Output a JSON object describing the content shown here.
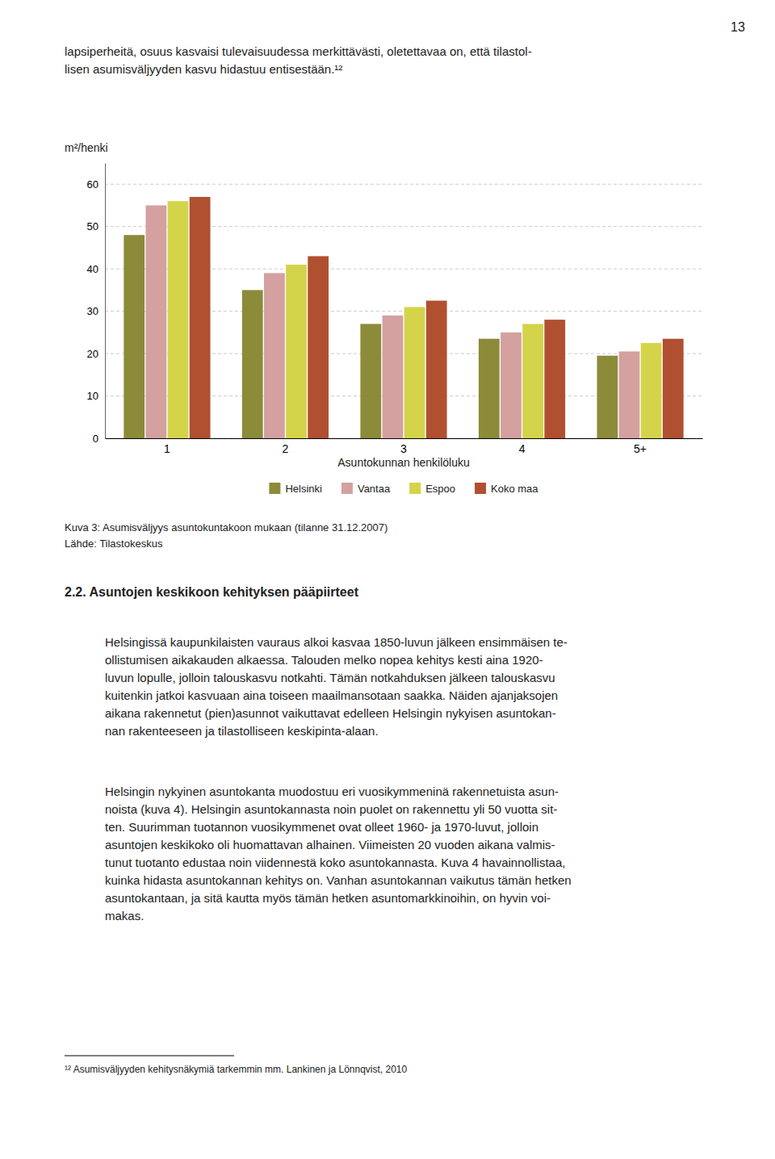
{
  "page_number": "13",
  "intro": [
    "lapsiperheitä, osuus kasvaisi tulevaisuudessa merkittävästi, oletettavaa on, että tilastol-",
    "lisen asumisväljyyden kasvu hidastuu entisestään.¹²"
  ],
  "chart_data": {
    "type": "bar",
    "ylabel": "m²/henki",
    "xlabel": "Asuntokunnan henkilöluku",
    "categories": [
      "1",
      "2",
      "3",
      "4",
      "5+"
    ],
    "series": [
      {
        "name": "Helsinki",
        "color": "#8B8B3A",
        "values": [
          48,
          35,
          27,
          23.5,
          19.5
        ]
      },
      {
        "name": "Vantaa",
        "color": "#D4A0A0",
        "values": [
          55,
          39,
          29,
          25,
          20.5
        ]
      },
      {
        "name": "Espoo",
        "color": "#D4D44A",
        "values": [
          56,
          41,
          31,
          27,
          22.5
        ]
      },
      {
        "name": "Koko maa",
        "color": "#B05030",
        "values": [
          57,
          43,
          32.5,
          28,
          23.5
        ]
      }
    ],
    "ylim": [
      0,
      65
    ],
    "yticks": [
      0,
      10,
      20,
      30,
      40,
      50,
      60
    ],
    "grid": true,
    "legend": "bottom"
  },
  "caption": "Kuva 3: Asumisväljyys asuntokuntakoon mukaan (tilanne 31.12.2007)",
  "source": "Lähde: Tilastokeskus",
  "heading": "2.2. Asuntojen keskikoon kehityksen pääpiirteet",
  "paragraphs": [
    [
      "Helsingissä kaupunkilaisten vauraus alkoi kasvaa 1850-luvun jälkeen ensimmäisen te-",
      "ollistumisen aikakauden alkaessa. Talouden melko nopea kehitys kesti aina 1920-",
      "luvun lopulle, jolloin talouskasvu notkahti. Tämän notkahduksen jälkeen talouskasvu",
      "kuitenkin jatkoi kasvuaan aina toiseen maailmansotaan saakka. Näiden ajanjaksojen",
      "aikana rakennetut (pien)asunnot vaikuttavat edelleen Helsingin nykyisen asuntokan-",
      "nan rakenteeseen ja tilastolliseen keskipinta-alaan."
    ],
    [
      "Helsingin nykyinen asuntokanta muodostuu eri vuosikymmeninä rakennetuista asun-",
      "noista (kuva 4). Helsingin asuntokannasta noin puolet on rakennettu yli 50 vuotta sit-",
      "ten. Suurimman tuotannon vuosikymmenet ovat olleet 1960- ja 1970-luvut, jolloin",
      "asuntojen keskikoko oli huomattavan alhainen. Viimeisten 20 vuoden aikana valmis-",
      "tunut tuotanto edustaa noin viidennestä koko asuntokannasta. Kuva 4 havainnollistaa,",
      "kuinka hidasta asuntokannan kehitys on. Vanhan asuntokannan vaikutus tämän hetken",
      "asuntokantaan, ja sitä kautta myös tämän hetken asuntomarkkinoihin, on hyvin voi-",
      "makas."
    ]
  ],
  "footnote": "¹² Asumisväljyyden kehitysnäkymiä tarkemmin mm. Lankinen ja Lönnqvist, 2010"
}
